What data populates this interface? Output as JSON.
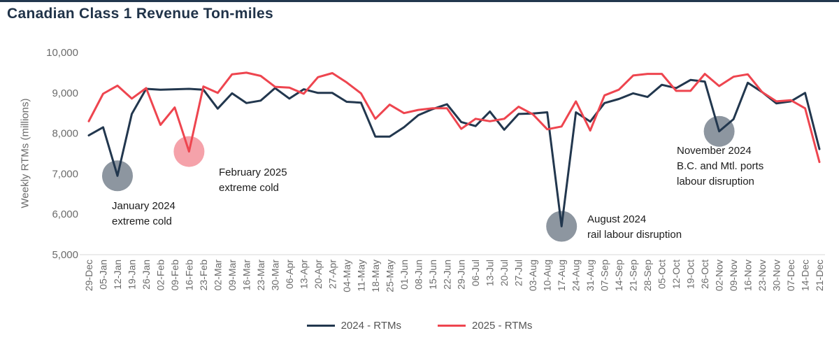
{
  "page": {
    "title": "Canadian Class 1 Revenue Ton-miles"
  },
  "colors": {
    "top_bar": "#22374e",
    "navy": "#22374e",
    "red": "#ee454f",
    "gray_circle": "#8d96a0",
    "pink_circle": "#f5a2aa",
    "axis_text": "#6b6b6b",
    "axis_line": "#d9d9d9",
    "annotation_text": "#1b1b1b"
  },
  "y_axis": {
    "label": "Weekly RTMs (millions)",
    "ticks": [
      "10,000",
      "9,000",
      "8,000",
      "7,000",
      "6,000",
      "5,000"
    ]
  },
  "legend": [
    {
      "label": "2024 - RTMs",
      "color": "#22374e"
    },
    {
      "label": "2025 - RTMs",
      "color": "#ee454f"
    }
  ],
  "annotations": [
    {
      "id": "jan-2024-cold",
      "week": "12-Jan",
      "value": 6950,
      "circle_color": "#8d96a0",
      "lines": [
        "January 2024",
        "extreme cold"
      ]
    },
    {
      "id": "feb-2025-cold",
      "week": "16-Feb",
      "value": 7550,
      "circle_color": "#f5a2aa",
      "lines": [
        "February 2025",
        "extreme cold"
      ]
    },
    {
      "id": "aug-2024-rail",
      "week": "17-Aug",
      "value": 5700,
      "circle_color": "#8d96a0",
      "lines": [
        "August 2024",
        "rail labour disruption"
      ]
    },
    {
      "id": "nov-2024-ports",
      "week": "02-Nov",
      "value": 8050,
      "circle_color": "#8d96a0",
      "lines": [
        "November 2024",
        "B.C. and Mtl. ports",
        "labour disruption"
      ]
    }
  ],
  "chart_data": {
    "type": "line",
    "title": "Canadian Class 1 Revenue Ton-miles",
    "xlabel": "",
    "ylabel": "Weekly RTMs (millions)",
    "ylim": [
      5000,
      10000
    ],
    "ytick_step": 1000,
    "grid": false,
    "legend_position": "bottom",
    "categories": [
      "29-Dec",
      "05-Jan",
      "12-Jan",
      "19-Jan",
      "26-Jan",
      "02-Feb",
      "09-Feb",
      "16-Feb",
      "23-Feb",
      "02-Mar",
      "09-Mar",
      "16-Mar",
      "23-Mar",
      "30-Mar",
      "06-Apr",
      "13-Apr",
      "20-Apr",
      "27-Apr",
      "04-May",
      "11-May",
      "18-May",
      "25-May",
      "01-Jun",
      "08-Jun",
      "15-Jun",
      "22-Jun",
      "29-Jun",
      "06-Jul",
      "13-Jul",
      "20-Jul",
      "27-Jul",
      "03-Aug",
      "10-Aug",
      "17-Aug",
      "24-Aug",
      "31-Aug",
      "07-Sep",
      "14-Sep",
      "21-Sep",
      "28-Sep",
      "05-Oct",
      "12-Oct",
      "19-Oct",
      "26-Oct",
      "02-Nov",
      "09-Nov",
      "16-Nov",
      "23-Nov",
      "30-Nov",
      "07-Dec",
      "14-Dec",
      "21-Dec"
    ],
    "series": [
      {
        "name": "2024 - RTMs",
        "color": "#22374e",
        "values": [
          7950,
          8150,
          6950,
          8480,
          9100,
          9080,
          9090,
          9100,
          9080,
          8610,
          8990,
          8750,
          8810,
          9120,
          8860,
          9090,
          9000,
          9000,
          8780,
          8760,
          7920,
          7920,
          8150,
          8450,
          8600,
          8720,
          8280,
          8180,
          8540,
          8090,
          8480,
          8490,
          8520,
          5700,
          8520,
          8290,
          8750,
          8850,
          8990,
          8900,
          9200,
          9120,
          9320,
          9280,
          8050,
          8350,
          9250,
          9020,
          8740,
          8790,
          9000,
          7610
        ]
      },
      {
        "name": "2025 - RTMs",
        "color": "#ee454f",
        "values": [
          8300,
          8980,
          9180,
          8860,
          9120,
          8210,
          8640,
          7550,
          9160,
          9000,
          9460,
          9500,
          9420,
          9150,
          9130,
          8980,
          9390,
          9490,
          9260,
          8990,
          8360,
          8710,
          8500,
          8580,
          8620,
          8620,
          8110,
          8360,
          8300,
          8360,
          8660,
          8470,
          8100,
          8170,
          8790,
          8070,
          8940,
          9080,
          9430,
          9470,
          9470,
          9050,
          9050,
          9470,
          9170,
          9400,
          9460,
          9020,
          8790,
          8820,
          8620,
          7290
        ]
      }
    ]
  }
}
